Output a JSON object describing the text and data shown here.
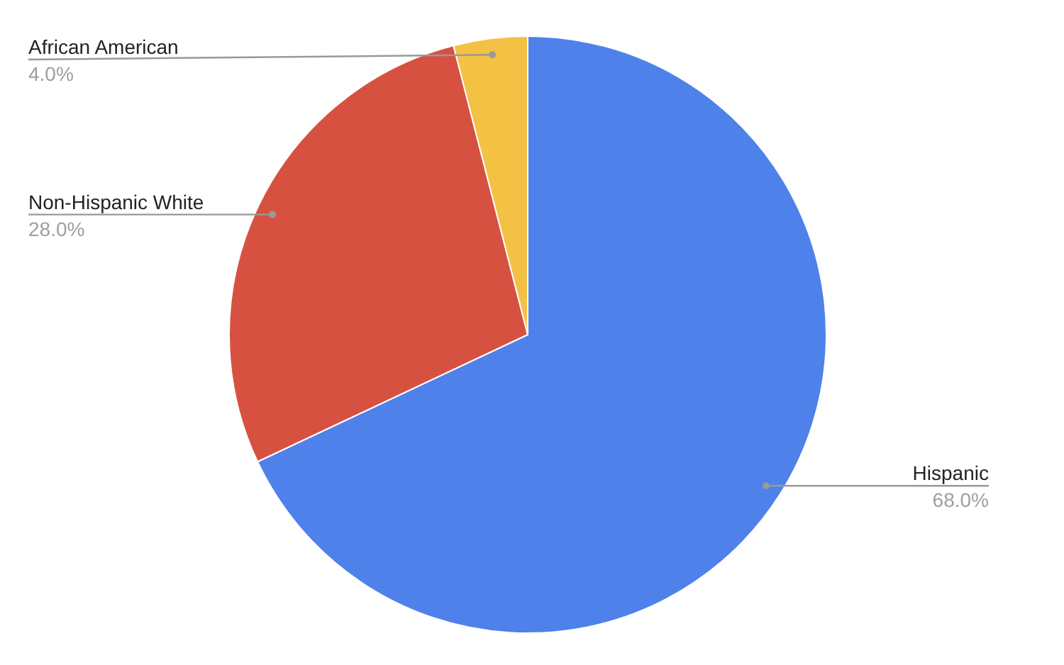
{
  "chart_data": {
    "type": "pie",
    "categories": [
      "Hispanic",
      "Non-Hispanic White",
      "African American"
    ],
    "values": [
      68,
      28,
      4
    ],
    "colors": [
      "#4f81ea",
      "#d75140",
      "#f3c143"
    ],
    "value_labels": [
      "68.0%",
      "28.0%",
      "4.0%"
    ],
    "legend": false
  }
}
